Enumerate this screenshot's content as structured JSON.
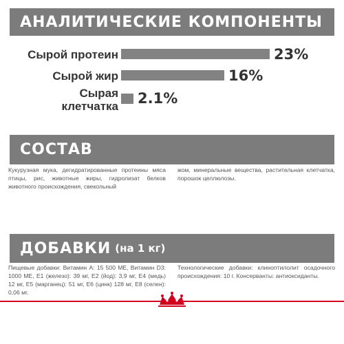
{
  "analytic": {
    "title": "АНАЛИТИЧЕСКИЕ КОМПОНЕНТЫ"
  },
  "metrics": [
    {
      "label": "Сырой протеин",
      "value": "23%",
      "percent": 23
    },
    {
      "label": "Сырой жир",
      "value": "16%",
      "percent": 16
    },
    {
      "label_line1": "Сырая",
      "label_line2": "клетчатка",
      "value": "2.1%",
      "percent": 2.1
    }
  ],
  "composition": {
    "title": "СОСТАВ",
    "text_left": "Кукурузная мука, дегидратированные протеины мяса птицы, рис, животные жиры, гидролизат белков животного происхождения, свекольный",
    "text_right": "жом, минеральные вещества, растительная клетчатка, порошок целлюлозы."
  },
  "additives": {
    "title": "ДОБАВКИ",
    "subtitle": "(на 1 кг)",
    "text_left": "Пищевые добавки: Витамин А: 15 500 МЕ, Витамин D3: 1000 МЕ, Е1 (железо): 39 мг, Е2 (йод): 3,9 мг, Е4 (медь) 12 мг, Е5 (марганец): 51 мг, Е6 (цинк) 128 мг, Е8 (селен): 0,06 мг.",
    "text_right": "Технологические добавки: клиноптилолит осадочного происхождения: 10 г. Консерванты: антиоксиданты."
  },
  "colors": {
    "banner": "#7c7c7c",
    "bar": "#828282",
    "brand_red": "#d2001e"
  },
  "logo": {
    "icon": "royal-canin-crown-logo"
  }
}
